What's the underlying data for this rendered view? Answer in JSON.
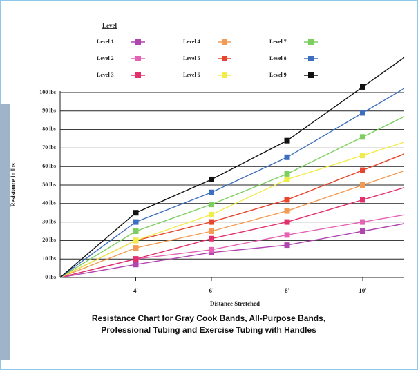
{
  "chart_data": {
    "type": "line",
    "legend_title": "Level",
    "x_label": "Distance Stretched",
    "y_label": "Resistance in lbs",
    "caption": [
      "Resistance Chart for Gray Cook Bands, All-Purpose Bands,",
      "Professional Tubing and Exercise Tubing with Handles"
    ],
    "categories": [
      null,
      "4'",
      "6'",
      "8'",
      "10'"
    ],
    "ylim": [
      0,
      100
    ],
    "yticks": [
      {
        "value": 0,
        "label": "0 lbs"
      },
      {
        "value": 10,
        "label": "10 lbs"
      },
      {
        "value": 20,
        "label": "20 lbs"
      },
      {
        "value": 30,
        "label": "30 lbs"
      },
      {
        "value": 40,
        "label": "40 lbs"
      },
      {
        "value": 50,
        "label": "50 lbs"
      },
      {
        "value": 60,
        "label": "60 lbs"
      },
      {
        "value": 70,
        "label": "70 lbs"
      },
      {
        "value": 80,
        "label": "80 lbs"
      },
      {
        "value": 90,
        "label": "90 lbs"
      },
      {
        "value": 100,
        "label": "100 lbs"
      }
    ],
    "grid": true,
    "series": [
      {
        "name": "Level 1",
        "color": "#b045b0",
        "values": [
          0,
          7,
          13.5,
          17.5,
          25
        ]
      },
      {
        "name": "Level 2",
        "color": "#e462b4",
        "values": [
          0,
          10,
          15,
          23,
          30
        ]
      },
      {
        "name": "Level 3",
        "color": "#e2306c",
        "values": [
          0,
          10,
          21,
          30,
          42
        ]
      },
      {
        "name": "Level 4",
        "color": "#f49a52",
        "values": [
          0,
          16,
          25,
          36,
          50
        ]
      },
      {
        "name": "Level 5",
        "color": "#e8452e",
        "values": [
          0,
          20,
          30,
          42,
          58
        ]
      },
      {
        "name": "Level 6",
        "color": "#f2ec48",
        "values": [
          0,
          20,
          34,
          53,
          66
        ]
      },
      {
        "name": "Level 7",
        "color": "#7ccf5e",
        "values": [
          0,
          25,
          39.5,
          56,
          76
        ]
      },
      {
        "name": "Level 8",
        "color": "#3e6ec0",
        "values": [
          0,
          30,
          46,
          65,
          89
        ]
      },
      {
        "name": "Level 9",
        "color": "#111111",
        "values": [
          0,
          35,
          53,
          74,
          103
        ]
      }
    ]
  }
}
